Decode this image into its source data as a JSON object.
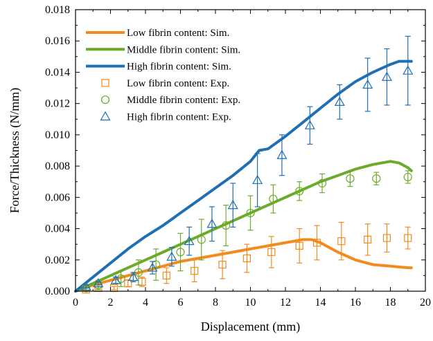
{
  "chart_data": {
    "type": "line",
    "title": "",
    "xlabel": "Displacement (mm)",
    "ylabel": "Force/Thickness (N/mm)",
    "xlim": [
      0,
      20
    ],
    "ylim": [
      0,
      0.018
    ],
    "xticks": [
      0,
      2,
      4,
      6,
      8,
      10,
      12,
      14,
      16,
      18,
      20
    ],
    "yticks": [
      0.0,
      0.002,
      0.004,
      0.006,
      0.008,
      0.01,
      0.012,
      0.014,
      0.016,
      0.018
    ],
    "xtick_labels": [
      "0",
      "2",
      "4",
      "6",
      "8",
      "10",
      "12",
      "14",
      "16",
      "18",
      "20"
    ],
    "ytick_labels": [
      "0.000",
      "0.002",
      "0.004",
      "0.006",
      "0.008",
      "0.010",
      "0.012",
      "0.014",
      "0.016",
      "0.018"
    ],
    "grid": false,
    "legend_position": "top-left",
    "colors": {
      "low": "#f28a1e",
      "middle": "#6aab2a",
      "high": "#1f6fb2"
    },
    "series": [
      {
        "name": "Low fibrin content: Sim.",
        "kind": "line",
        "group": "low",
        "x": [
          0,
          1,
          2,
          3,
          4,
          5,
          6,
          7,
          8,
          9,
          10,
          11,
          12,
          13,
          13.5,
          14,
          14.5,
          15,
          16,
          17,
          18,
          19,
          19.2
        ],
        "y": [
          0,
          0.0004,
          0.0007,
          0.001,
          0.0013,
          0.0016,
          0.0019,
          0.0021,
          0.0023,
          0.0025,
          0.0027,
          0.0029,
          0.0031,
          0.0033,
          0.0033,
          0.0031,
          0.0028,
          0.0025,
          0.002,
          0.0017,
          0.0016,
          0.0015,
          0.0015
        ]
      },
      {
        "name": "Middle fibrin content: Sim.",
        "kind": "line",
        "group": "middle",
        "x": [
          0,
          1,
          2,
          3,
          4,
          5,
          6,
          7,
          8,
          9,
          10,
          11,
          12,
          13,
          14,
          15,
          16,
          17,
          18,
          18.5,
          19,
          19.2
        ],
        "y": [
          0,
          0.0005,
          0.001,
          0.0015,
          0.002,
          0.0025,
          0.003,
          0.0035,
          0.004,
          0.0045,
          0.005,
          0.0055,
          0.006,
          0.0065,
          0.007,
          0.0074,
          0.0078,
          0.0081,
          0.0083,
          0.0082,
          0.0079,
          0.0077
        ]
      },
      {
        "name": "High fibrin content: Sim.",
        "kind": "line",
        "group": "high",
        "x": [
          0,
          1,
          2,
          3,
          4,
          5,
          6,
          7,
          8,
          9,
          10,
          10.5,
          11,
          12,
          13,
          14,
          15,
          16,
          17,
          18,
          18.5,
          19,
          19.2
        ],
        "y": [
          0,
          0.0009,
          0.0018,
          0.0027,
          0.0035,
          0.0042,
          0.005,
          0.0058,
          0.0066,
          0.0074,
          0.0083,
          0.009,
          0.0091,
          0.0099,
          0.0108,
          0.0117,
          0.0126,
          0.0134,
          0.014,
          0.0145,
          0.0147,
          0.0147,
          0.0147
        ]
      },
      {
        "name": "Low fibrin content: Exp.",
        "kind": "scatter",
        "marker": "square",
        "group": "low",
        "x": [
          0.6,
          1.3,
          2.2,
          3.0,
          3.8,
          5.2,
          6.8,
          8.4,
          9.8,
          11.2,
          12.8,
          13.8,
          15.2,
          16.7,
          17.8,
          19.0
        ],
        "y": [
          0.0001,
          0.0002,
          0.0002,
          0.0005,
          0.0006,
          0.001,
          0.0013,
          0.0017,
          0.0021,
          0.0025,
          0.0029,
          0.0031,
          0.0032,
          0.0033,
          0.0034,
          0.0034
        ],
        "err": [
          0.0001,
          0.0001,
          0.0001,
          0.0002,
          0.0003,
          0.0005,
          0.0007,
          0.0009,
          0.0009,
          0.001,
          0.0011,
          0.0011,
          0.0012,
          0.001,
          0.0009,
          0.0007
        ]
      },
      {
        "name": "Middle fibrin content: Exp.",
        "kind": "scatter",
        "marker": "circle",
        "group": "middle",
        "x": [
          0.6,
          1.3,
          2.6,
          3.6,
          4.6,
          6.0,
          7.2,
          8.6,
          10.0,
          11.3,
          12.8,
          14.1,
          15.7,
          17.2,
          19.0
        ],
        "y": [
          0.0002,
          0.0004,
          0.0008,
          0.0012,
          0.0017,
          0.0025,
          0.0033,
          0.0042,
          0.005,
          0.0059,
          0.0064,
          0.0069,
          0.0072,
          0.0072,
          0.0073
        ],
        "err": [
          0.0002,
          0.0003,
          0.0005,
          0.0008,
          0.001,
          0.0012,
          0.0013,
          0.0013,
          0.0011,
          0.0009,
          0.0006,
          0.0006,
          0.0005,
          0.0004,
          0.0004
        ]
      },
      {
        "name": "High fibrin content: Exp.",
        "kind": "scatter",
        "marker": "triangle",
        "group": "high",
        "x": [
          0.6,
          1.3,
          2.3,
          3.3,
          4.4,
          5.5,
          6.5,
          7.8,
          9.0,
          10.4,
          11.8,
          13.4,
          15.1,
          16.7,
          17.8,
          19.0
        ],
        "y": [
          0.0003,
          0.0005,
          0.0007,
          0.0009,
          0.0015,
          0.0022,
          0.0032,
          0.0043,
          0.0055,
          0.0071,
          0.0087,
          0.0106,
          0.0121,
          0.0132,
          0.0137,
          0.0141
        ],
        "err": [
          0.0001,
          0.0001,
          0.0002,
          0.0003,
          0.0004,
          0.0006,
          0.0009,
          0.0011,
          0.0014,
          0.0017,
          0.0013,
          0.0012,
          0.0011,
          0.0017,
          0.0018,
          0.0022
        ]
      }
    ]
  }
}
